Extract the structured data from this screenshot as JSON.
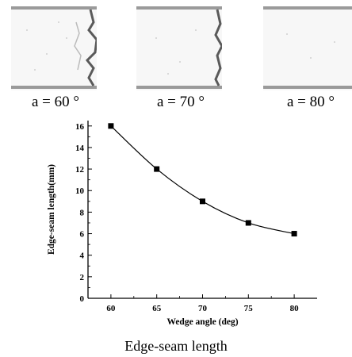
{
  "photos": [
    {
      "caption": "a = 60 °",
      "seam_depth": 0.55
    },
    {
      "caption": "a = 70 °",
      "seam_depth": 0.35
    },
    {
      "caption": "a = 80 °",
      "seam_depth": 0.1
    }
  ],
  "figure_caption": "Edge-seam length",
  "chart_data": {
    "type": "line",
    "title": "",
    "xlabel": "Wedge angle (deg)",
    "ylabel": "Edge-seam length(mm)",
    "x": [
      60,
      65,
      70,
      75,
      80
    ],
    "series": [
      {
        "values": [
          16,
          12,
          9,
          7,
          6
        ],
        "marker": "square",
        "color": "#000000"
      }
    ],
    "xlim": [
      57.5,
      82.5
    ],
    "ylim": [
      0,
      16.5
    ],
    "xticks": [
      60,
      65,
      70,
      75,
      80
    ],
    "yticks": [
      0,
      2,
      4,
      6,
      8,
      10,
      12,
      14,
      16
    ],
    "grid": false,
    "legend": "none"
  }
}
